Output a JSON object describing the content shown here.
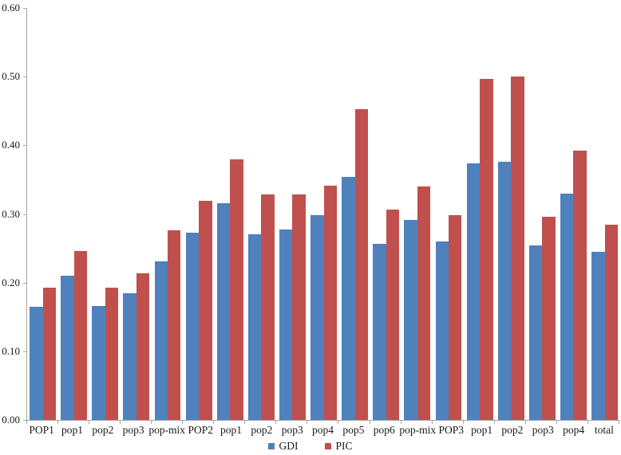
{
  "figure": {
    "background": "#ffffff",
    "axis_color": "#a6a6a6",
    "text_color": "#1a1a1a"
  },
  "chart_data": {
    "type": "bar",
    "title": "",
    "xlabel": "",
    "ylabel": "",
    "grid": "off",
    "legend_position": "bottom-center",
    "ylim": [
      0,
      0.6
    ],
    "yticks_labels": [
      "0.00",
      "0.10",
      "0.20",
      "0.30",
      "0.40",
      "0.50",
      "0.60"
    ],
    "yticks_values": [
      0,
      0.1,
      0.2,
      0.3,
      0.4,
      0.5,
      0.6
    ],
    "categories": [
      "POP1",
      "pop1",
      "pop2",
      "pop3",
      "pop-mix",
      "POP2",
      "pop1",
      "pop2",
      "pop3",
      "pop4",
      "pop5",
      "pop6",
      "pop-mix",
      "POP3",
      "pop1",
      "pop2",
      "pop3",
      "pop4",
      "total"
    ],
    "series": [
      {
        "name": "GDI",
        "color": "#4f81bd",
        "values": [
          0.165,
          0.21,
          0.166,
          0.185,
          0.231,
          0.273,
          0.316,
          0.271,
          0.277,
          0.298,
          0.354,
          0.256,
          0.291,
          0.26,
          0.374,
          0.376,
          0.254,
          0.33,
          0.245
        ]
      },
      {
        "name": "PIC",
        "color": "#c0504d",
        "values": [
          0.193,
          0.246,
          0.193,
          0.213,
          0.276,
          0.319,
          0.379,
          0.328,
          0.328,
          0.341,
          0.453,
          0.306,
          0.34,
          0.298,
          0.497,
          0.5,
          0.296,
          0.392,
          0.284
        ]
      }
    ]
  }
}
